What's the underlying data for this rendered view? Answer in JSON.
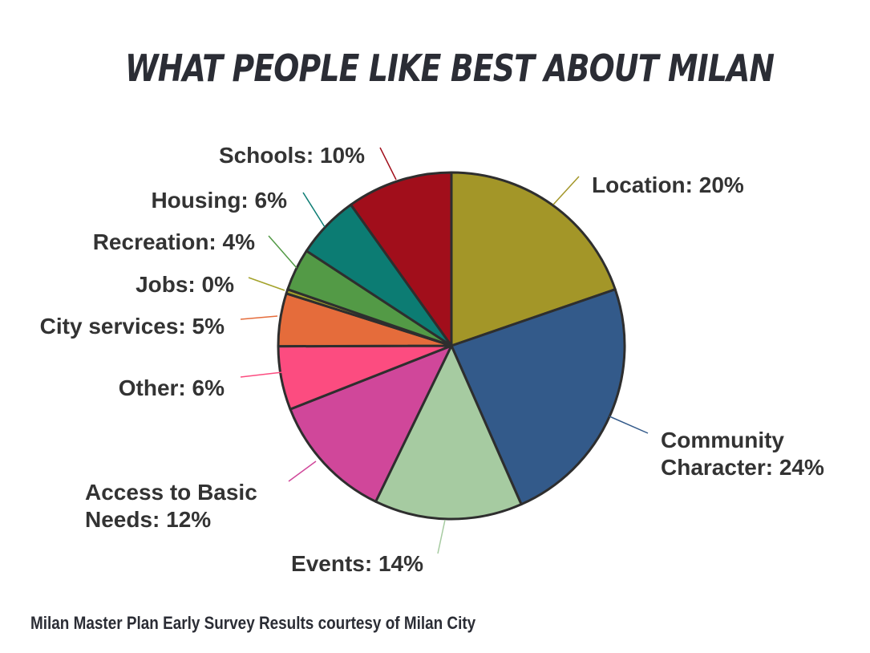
{
  "chart_data": {
    "type": "pie",
    "title": "WHAT PEOPLE LIKE BEST ABOUT MILAN",
    "slices": [
      {
        "label": "Location: 20%",
        "value": 20,
        "color": "#a39628"
      },
      {
        "label": "Community Character: 24%",
        "value": 24,
        "color": "#335a8a"
      },
      {
        "label": "Events: 14%",
        "value": 14,
        "color": "#a6cba1"
      },
      {
        "label": "Access to Basic Needs: 12%",
        "value": 12,
        "color": "#d0479a"
      },
      {
        "label": "Other: 6%",
        "value": 6,
        "color": "#fc4c80"
      },
      {
        "label": "City services: 5%",
        "value": 5,
        "color": "#e56c3b"
      },
      {
        "label": "Jobs: 0%",
        "value": 0.4,
        "color": "#a3a22a"
      },
      {
        "label": "Recreation: 4%",
        "value": 4,
        "color": "#539a46"
      },
      {
        "label": "Housing: 6%",
        "value": 6,
        "color": "#0c7c73"
      },
      {
        "label": "Schools: 10%",
        "value": 10,
        "color": "#a10e1b"
      }
    ]
  },
  "footer": "Milan Master Plan Early Survey Results courtesy of Milan City"
}
